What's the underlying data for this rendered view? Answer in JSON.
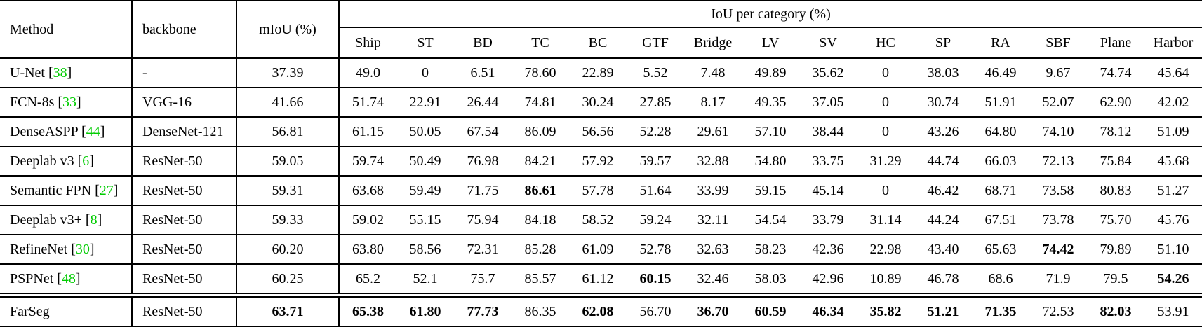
{
  "colors": {
    "citation_green": "#00CC00",
    "text": "#000000",
    "rule": "#000000"
  },
  "table": {
    "header": {
      "method_label": "Method",
      "backbone_label": "backbone",
      "miou_label": "mIoU (%)",
      "group_label": "IoU per category (%)",
      "categories": [
        "Ship",
        "ST",
        "BD",
        "TC",
        "BC",
        "GTF",
        "Bridge",
        "LV",
        "SV",
        "HC",
        "SP",
        "RA",
        "SBF",
        "Plane",
        "Harbor"
      ]
    },
    "rows": [
      {
        "method": "U-Net",
        "cite": "38",
        "backbone": "-",
        "miou": "37.39",
        "miou_bold": false,
        "values": [
          "49.0",
          "0",
          "6.51",
          "78.60",
          "22.89",
          "5.52",
          "7.48",
          "49.89",
          "35.62",
          "0",
          "38.03",
          "46.49",
          "9.67",
          "74.74",
          "45.64"
        ],
        "bold_indices": [],
        "rule_below": "single"
      },
      {
        "method": "FCN-8s",
        "cite": "33",
        "backbone": "VGG-16",
        "miou": "41.66",
        "miou_bold": false,
        "values": [
          "51.74",
          "22.91",
          "26.44",
          "74.81",
          "30.24",
          "27.85",
          "8.17",
          "49.35",
          "37.05",
          "0",
          "30.74",
          "51.91",
          "52.07",
          "62.90",
          "42.02"
        ],
        "bold_indices": [],
        "rule_below": "single"
      },
      {
        "method": "DenseASPP",
        "cite": "44",
        "backbone": "DenseNet-121",
        "miou": "56.81",
        "miou_bold": false,
        "values": [
          "61.15",
          "50.05",
          "67.54",
          "86.09",
          "56.56",
          "52.28",
          "29.61",
          "57.10",
          "38.44",
          "0",
          "43.26",
          "64.80",
          "74.10",
          "78.12",
          "51.09"
        ],
        "bold_indices": [],
        "rule_below": "single"
      },
      {
        "method": "Deeplab v3",
        "cite": "6",
        "backbone": "ResNet-50",
        "miou": "59.05",
        "miou_bold": false,
        "values": [
          "59.74",
          "50.49",
          "76.98",
          "84.21",
          "57.92",
          "59.57",
          "32.88",
          "54.80",
          "33.75",
          "31.29",
          "44.74",
          "66.03",
          "72.13",
          "75.84",
          "45.68"
        ],
        "bold_indices": [],
        "rule_below": "single"
      },
      {
        "method": "Semantic FPN",
        "cite": "27",
        "backbone": "ResNet-50",
        "miou": "59.31",
        "miou_bold": false,
        "values": [
          "63.68",
          "59.49",
          "71.75",
          "86.61",
          "57.78",
          "51.64",
          "33.99",
          "59.15",
          "45.14",
          "0",
          "46.42",
          "68.71",
          "73.58",
          "80.83",
          "51.27"
        ],
        "bold_indices": [
          3
        ],
        "rule_below": "single"
      },
      {
        "method": "Deeplab v3+",
        "cite": "8",
        "backbone": "ResNet-50",
        "miou": "59.33",
        "miou_bold": false,
        "values": [
          "59.02",
          "55.15",
          "75.94",
          "84.18",
          "58.52",
          "59.24",
          "32.11",
          "54.54",
          "33.79",
          "31.14",
          "44.24",
          "67.51",
          "73.78",
          "75.70",
          "45.76"
        ],
        "bold_indices": [],
        "rule_below": "single"
      },
      {
        "method": "RefineNet",
        "cite": "30",
        "backbone": "ResNet-50",
        "miou": "60.20",
        "miou_bold": false,
        "values": [
          "63.80",
          "58.56",
          "72.31",
          "85.28",
          "61.09",
          "52.78",
          "32.63",
          "58.23",
          "42.36",
          "22.98",
          "43.40",
          "65.63",
          "74.42",
          "79.89",
          "51.10"
        ],
        "bold_indices": [
          12
        ],
        "rule_below": "single"
      },
      {
        "method": "PSPNet",
        "cite": "48",
        "backbone": "ResNet-50",
        "miou": "60.25",
        "miou_bold": false,
        "values": [
          "65.2",
          "52.1",
          "75.7",
          "85.57",
          "61.12",
          "60.15",
          "32.46",
          "58.03",
          "42.96",
          "10.89",
          "46.78",
          "68.6",
          "71.9",
          "79.5",
          "54.26"
        ],
        "bold_indices": [
          5,
          14
        ],
        "rule_below": "double"
      },
      {
        "method": "FarSeg",
        "cite": null,
        "backbone": "ResNet-50",
        "miou": "63.71",
        "miou_bold": true,
        "values": [
          "65.38",
          "61.80",
          "77.73",
          "86.35",
          "62.08",
          "56.70",
          "36.70",
          "60.59",
          "46.34",
          "35.82",
          "51.21",
          "71.35",
          "72.53",
          "82.03",
          "53.91"
        ],
        "bold_indices": [
          0,
          1,
          2,
          4,
          6,
          7,
          8,
          9,
          10,
          11,
          13
        ],
        "rule_below": "single"
      }
    ]
  }
}
